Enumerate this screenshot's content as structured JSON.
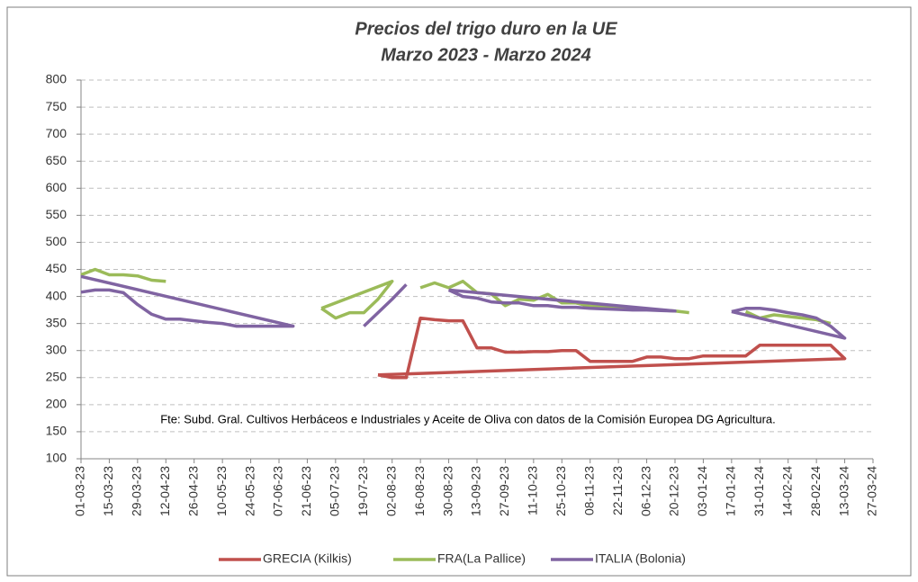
{
  "chart_data": {
    "type": "line",
    "title": [
      "Precios del trigo duro en la UE",
      "Marzo 2023 - Marzo 2024"
    ],
    "annotation": "Fte: Subd. Gral. Cultivos Herbáceos e Industriales y Aceite de Oliva con datos de la Comisión Europea DG Agricultura.",
    "ylim": [
      100,
      800
    ],
    "yticks": [
      100,
      150,
      200,
      250,
      300,
      350,
      400,
      450,
      500,
      550,
      600,
      650,
      700,
      750,
      800
    ],
    "xlim": [
      "01-03-23",
      "27-03-24"
    ],
    "xticks": [
      "01-03-23",
      "15-03-23",
      "29-03-23",
      "12-04-23",
      "26-04-23",
      "10-05-23",
      "24-05-23",
      "07-06-23",
      "21-06-23",
      "05-07-23",
      "19-07-23",
      "02-08-23",
      "16-08-23",
      "30-08-23",
      "13-09-23",
      "27-09-23",
      "11-10-23",
      "25-10-23",
      "08-11-23",
      "22-11-23",
      "06-12-23",
      "20-12-23",
      "03-01-24",
      "17-01-24",
      "31-01-24",
      "14-02-24",
      "28-02-24",
      "13-03-24",
      "27-03-24"
    ],
    "grid": true,
    "legend": "bottom",
    "series": [
      {
        "name": "GRECIA (Kilkis)",
        "color": "#c0504d",
        "x": [
          "26-07-23",
          "02-08-23",
          "09-08-23",
          "16-08-23",
          "23-08-23",
          "30-08-23",
          "06-09-23",
          "13-09-23",
          "20-09-23",
          "27-09-23",
          "04-10-23",
          "11-10-23",
          "18-10-23",
          "25-10-23",
          "01-11-23",
          "08-11-23",
          "15-11-23",
          "22-11-23",
          "29-11-23",
          "06-12-23",
          "13-12-23",
          "20-12-23",
          "27-12-23",
          "03-01-24",
          "10-01-24",
          "17-01-24",
          "24-01-24",
          "31-01-24",
          "07-02-24",
          "14-02-24",
          "21-02-24",
          "28-02-24",
          "06-03-24",
          "13-03-24",
          "26-07-23"
        ],
        "values": [
          255,
          250,
          250,
          360,
          357,
          355,
          355,
          305,
          305,
          297,
          297,
          298,
          298,
          300,
          300,
          280,
          280,
          280,
          280,
          288,
          288,
          285,
          285,
          290,
          290,
          290,
          290,
          310,
          310,
          310,
          310,
          310,
          310,
          285,
          255
        ]
      },
      {
        "name": "FRA(La Pallice)",
        "color": "#9bbb59",
        "x": [
          "01-03-23",
          "08-03-23",
          "15-03-23",
          "22-03-23",
          "29-03-23",
          "05-04-23",
          "12-04-23",
          "21-06-23",
          "28-06-23",
          "05-07-23",
          "12-07-23",
          "19-07-23",
          "26-07-23",
          "02-08-23",
          "28-06-23",
          "09-08-23",
          "16-08-23",
          "23-08-23",
          "30-08-23",
          "06-09-23",
          "13-09-23",
          "20-09-23",
          "27-09-23",
          "04-10-23",
          "11-10-23",
          "18-10-23",
          "25-10-23",
          "01-11-23",
          "08-11-23",
          "20-12-23",
          "27-12-23",
          "10-01-24",
          "24-01-24",
          "31-01-24",
          "07-02-24",
          "28-02-24",
          "06-03-24"
        ],
        "values": [
          440,
          450,
          440,
          440,
          438,
          430,
          428,
          null,
          378,
          360,
          370,
          370,
          395,
          428,
          378,
          null,
          416,
          425,
          416,
          428,
          407,
          405,
          383,
          395,
          393,
          404,
          388,
          388,
          382,
          373,
          370,
          null,
          372,
          360,
          366,
          357,
          350
        ]
      },
      {
        "name": "ITALIA (Bolonia)",
        "color": "#8064a2",
        "x": [
          "01-03-23",
          "14-06-23",
          "07-06-23",
          "31-05-23",
          "24-05-23",
          "17-05-23",
          "10-05-23",
          "03-05-23",
          "26-04-23",
          "19-04-23",
          "12-04-23",
          "05-04-23",
          "29-03-23",
          "22-03-23",
          "15-03-23",
          "08-03-23",
          "01-03-23",
          "12-07-23",
          "19-07-23",
          "26-07-23",
          "02-08-23",
          "09-08-23",
          "23-08-23",
          "30-08-23",
          "06-09-23",
          "13-09-23",
          "20-09-23",
          "27-09-23",
          "04-10-23",
          "11-10-23",
          "18-10-23",
          "25-10-23",
          "01-11-23",
          "08-11-23",
          "15-11-23",
          "22-11-23",
          "29-11-23",
          "06-12-23",
          "13-12-23",
          "20-12-23",
          "30-08-23",
          "10-01-24",
          "17-01-24",
          "24-01-24",
          "31-01-24",
          "07-02-24",
          "14-02-24",
          "21-02-24",
          "28-02-24",
          "06-03-24",
          "13-03-24",
          "17-01-24"
        ],
        "values": [
          437,
          345,
          345,
          345,
          345,
          345,
          350,
          352,
          355,
          358,
          358,
          367,
          385,
          407,
          412,
          412,
          408,
          null,
          345,
          370,
          395,
          422,
          null,
          412,
          400,
          397,
          390,
          388,
          388,
          383,
          383,
          380,
          380,
          378,
          377,
          376,
          375,
          375,
          374,
          373,
          412,
          null,
          372,
          378,
          378,
          375,
          370,
          366,
          360,
          345,
          323,
          372
        ]
      }
    ]
  }
}
